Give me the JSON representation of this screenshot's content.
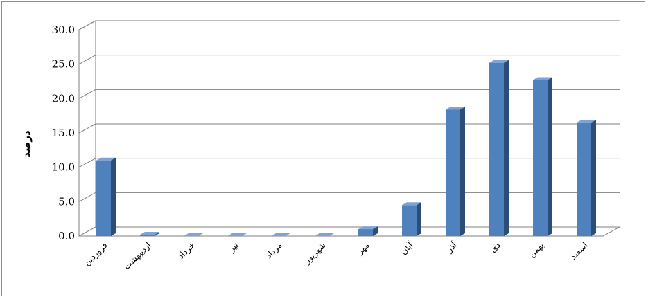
{
  "chart_data": {
    "type": "bar",
    "categories": [
      "فروردین",
      "اردیبهشت",
      "خرداد",
      "تیر",
      "مرداد",
      "شهریور",
      "مهر",
      "آبان",
      "آذر",
      "دی",
      "بهمن",
      "اسفند"
    ],
    "values": [
      11.0,
      0.2,
      0.0,
      0.0,
      0.0,
      0.0,
      1.0,
      4.5,
      18.4,
      25.2,
      22.7,
      16.5
    ],
    "ylabel": "درصد",
    "xlabel": "",
    "ylim": [
      0,
      30
    ],
    "yticks": [
      "0.0",
      "5.0",
      "10.0",
      "15.0",
      "20.0",
      "25.0",
      "30.0"
    ],
    "grid": true,
    "style": "3d-column",
    "colors": {
      "bar_front": "#4f81bd",
      "bar_side": "#2c4d75",
      "bar_top": "#7ea3d6",
      "grid": "#7f7f7f"
    }
  }
}
